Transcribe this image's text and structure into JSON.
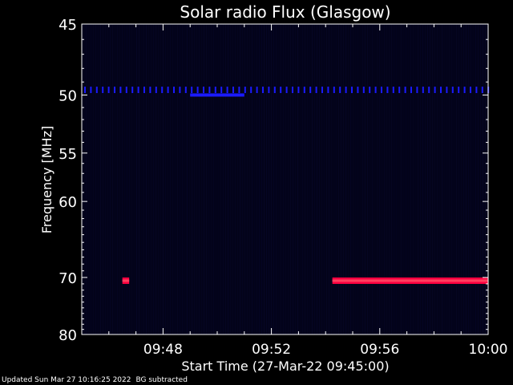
{
  "chart_data": {
    "type": "heatmap",
    "title": "Solar radio Flux (Glasgow)",
    "xlabel": "Start Time (27-Mar-22 09:45:00)",
    "ylabel": "Frequency [MHz]",
    "x_start_minutes": 0,
    "x_end_minutes": 15,
    "xlim": [
      "09:45",
      "10:00"
    ],
    "ylim": [
      45,
      80
    ],
    "y_scale": "reciprocal",
    "x_tick_labels": [
      "09:48",
      "09:52",
      "09:56",
      "10:00"
    ],
    "x_tick_times": [
      "09:48",
      "09:52",
      "09:56",
      "10:00"
    ],
    "y_ticks": [
      45,
      50,
      55,
      60,
      70,
      80
    ],
    "colors": {
      "background": "#000000",
      "plot_bg": "#03031a",
      "interference": "#1a1aff",
      "burst_edge": "#ff0040",
      "burst_core": "#ff4060"
    },
    "features": [
      {
        "label": "interference",
        "freq_mhz": 49.6,
        "start": "09:45",
        "end": "10:00",
        "intensity": "low"
      },
      {
        "label": "interference",
        "freq_mhz": 50.0,
        "start": "09:49",
        "end": "09:51",
        "intensity": "medium"
      },
      {
        "label": "emission",
        "freq_mhz": 70.5,
        "start": "09:46:30",
        "end": "09:46:45",
        "intensity": "high"
      },
      {
        "label": "emission",
        "freq_mhz": 70.5,
        "start": "09:54:15",
        "end": "10:00",
        "intensity": "high"
      }
    ]
  },
  "footer": {
    "updated": "Updated Sun Mar 27 10:16:25 2022",
    "note": "BG subtracted"
  }
}
